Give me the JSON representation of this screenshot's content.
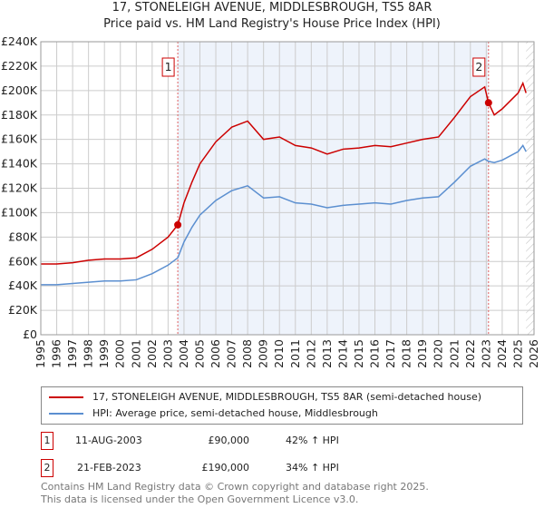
{
  "title": "17, STONELEIGH AVENUE, MIDDLESBROUGH, TS5 8AR",
  "subtitle": "Price paid vs. HM Land Registry's House Price Index (HPI)",
  "chart_data": {
    "type": "line",
    "xlim": [
      1995,
      2026
    ],
    "ylim": [
      0,
      240000
    ],
    "x_ticks": [
      "1995",
      "1996",
      "1997",
      "1998",
      "1999",
      "2000",
      "2001",
      "2002",
      "2003",
      "2004",
      "2005",
      "2006",
      "2007",
      "2008",
      "2009",
      "2010",
      "2011",
      "2012",
      "2013",
      "2014",
      "2015",
      "2016",
      "2017",
      "2018",
      "2019",
      "2020",
      "2021",
      "2022",
      "2023",
      "2024",
      "2025",
      "2026"
    ],
    "y_ticks": [
      {
        "v": 0,
        "label": "£0"
      },
      {
        "v": 20000,
        "label": "£20K"
      },
      {
        "v": 40000,
        "label": "£40K"
      },
      {
        "v": 60000,
        "label": "£60K"
      },
      {
        "v": 80000,
        "label": "£80K"
      },
      {
        "v": 100000,
        "label": "£100K"
      },
      {
        "v": 120000,
        "label": "£120K"
      },
      {
        "v": 140000,
        "label": "£140K"
      },
      {
        "v": 160000,
        "label": "£160K"
      },
      {
        "v": 180000,
        "label": "£180K"
      },
      {
        "v": 200000,
        "label": "£200K"
      },
      {
        "v": 220000,
        "label": "£220K"
      },
      {
        "v": 240000,
        "label": "£240K"
      }
    ],
    "grid": true,
    "shaded_range": [
      2003.61,
      2023.14
    ],
    "forecast_hatch_from": 2025.5,
    "series": [
      {
        "name": "17, STONELEIGH AVENUE, MIDDLESBROUGH, TS5 8AR (semi-detached house)",
        "color": "#cc0000",
        "x": [
          1995,
          1996,
          1997,
          1998,
          1999,
          2000,
          2001,
          2002,
          2003,
          2003.61,
          2004,
          2004.5,
          2005,
          2006,
          2007,
          2008,
          2009,
          2010,
          2011,
          2012,
          2013,
          2014,
          2015,
          2016,
          2017,
          2018,
          2019,
          2020,
          2021,
          2022,
          2022.9,
          2023.14,
          2023.5,
          2024,
          2025,
          2025.3,
          2025.5
        ],
        "y": [
          58000,
          58000,
          59000,
          61000,
          62000,
          62000,
          63000,
          70000,
          80000,
          90000,
          108000,
          125000,
          140000,
          158000,
          170000,
          175000,
          160000,
          162000,
          155000,
          153000,
          148000,
          152000,
          153000,
          155000,
          154000,
          157000,
          160000,
          162000,
          178000,
          195000,
          203000,
          190000,
          180000,
          185000,
          198000,
          206000,
          198000
        ]
      },
      {
        "name": "HPI: Average price, semi-detached house, Middlesbrough",
        "color": "#5b8fd0",
        "x": [
          1995,
          1996,
          1997,
          1998,
          1999,
          2000,
          2001,
          2002,
          2003,
          2003.61,
          2004,
          2004.5,
          2005,
          2006,
          2007,
          2008,
          2009,
          2010,
          2011,
          2012,
          2013,
          2014,
          2015,
          2016,
          2017,
          2018,
          2019,
          2020,
          2021,
          2022,
          2022.9,
          2023.14,
          2023.5,
          2024,
          2025,
          2025.3,
          2025.5
        ],
        "y": [
          41000,
          41000,
          42000,
          43000,
          44000,
          44000,
          45000,
          50000,
          57000,
          63000,
          76000,
          88000,
          98000,
          110000,
          118000,
          122000,
          112000,
          113000,
          108000,
          107000,
          104000,
          106000,
          107000,
          108000,
          107000,
          110000,
          112000,
          113000,
          125000,
          138000,
          144000,
          142000,
          141000,
          143000,
          150000,
          155000,
          150000
        ]
      }
    ],
    "sales": [
      {
        "id": "1",
        "x": 2003.61,
        "y": 90000
      },
      {
        "id": "2",
        "x": 2023.14,
        "y": 190000
      }
    ]
  },
  "legend": {
    "property": "17, STONELEIGH AVENUE, MIDDLESBROUGH, TS5 8AR (semi-detached house)",
    "hpi": "HPI: Average price, semi-detached house, Middlesbrough"
  },
  "transactions": [
    {
      "id": "1",
      "date": "11-AUG-2003",
      "price": "£90,000",
      "delta": "42% ↑ HPI"
    },
    {
      "id": "2",
      "date": "21-FEB-2023",
      "price": "£190,000",
      "delta": "34% ↑ HPI"
    }
  ],
  "footer": {
    "line1": "Contains HM Land Registry data © Crown copyright and database right 2025.",
    "line2": "This data is licensed under the Open Government Licence v3.0."
  }
}
